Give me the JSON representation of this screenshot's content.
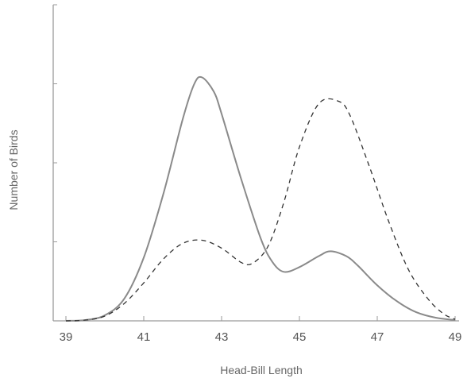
{
  "chart_data": {
    "type": "line",
    "title": "",
    "xlabel": "Head-Bill Length",
    "ylabel": "Number of Birds",
    "xlim": [
      39,
      49
    ],
    "ylim": [
      0,
      4
    ],
    "x_ticks": [
      39,
      41,
      43,
      45,
      47,
      49
    ],
    "x_tick_labels": [
      "39",
      "41",
      "43",
      "45",
      "47",
      "49"
    ],
    "y_ticks": [
      1,
      2,
      3,
      4
    ],
    "y_tick_labels": [],
    "grid": false,
    "legend": "none",
    "series": [
      {
        "style": "solid",
        "color": "#8a8a8a",
        "points": [
          [
            39.0,
            0.0
          ],
          [
            39.5,
            0.01
          ],
          [
            40.0,
            0.07
          ],
          [
            40.5,
            0.28
          ],
          [
            41.0,
            0.8
          ],
          [
            41.5,
            1.6
          ],
          [
            42.0,
            2.55
          ],
          [
            42.3,
            3.0
          ],
          [
            42.5,
            3.08
          ],
          [
            42.8,
            2.9
          ],
          [
            43.0,
            2.62
          ],
          [
            43.5,
            1.8
          ],
          [
            44.0,
            1.05
          ],
          [
            44.3,
            0.75
          ],
          [
            44.6,
            0.62
          ],
          [
            45.0,
            0.68
          ],
          [
            45.5,
            0.82
          ],
          [
            45.8,
            0.88
          ],
          [
            46.2,
            0.82
          ],
          [
            46.5,
            0.7
          ],
          [
            47.0,
            0.45
          ],
          [
            47.5,
            0.25
          ],
          [
            48.0,
            0.11
          ],
          [
            48.5,
            0.04
          ],
          [
            49.0,
            0.01
          ]
        ]
      },
      {
        "style": "dashed",
        "color": "#333333",
        "points": [
          [
            39.0,
            0.0
          ],
          [
            39.5,
            0.01
          ],
          [
            40.0,
            0.06
          ],
          [
            40.5,
            0.22
          ],
          [
            41.0,
            0.48
          ],
          [
            41.5,
            0.78
          ],
          [
            42.0,
            0.98
          ],
          [
            42.5,
            1.02
          ],
          [
            43.0,
            0.92
          ],
          [
            43.5,
            0.74
          ],
          [
            43.8,
            0.73
          ],
          [
            44.2,
            0.95
          ],
          [
            44.6,
            1.5
          ],
          [
            45.0,
            2.2
          ],
          [
            45.5,
            2.75
          ],
          [
            46.0,
            2.78
          ],
          [
            46.3,
            2.6
          ],
          [
            46.8,
            1.95
          ],
          [
            47.3,
            1.25
          ],
          [
            47.8,
            0.65
          ],
          [
            48.3,
            0.28
          ],
          [
            48.7,
            0.09
          ],
          [
            49.0,
            0.02
          ]
        ]
      }
    ]
  }
}
